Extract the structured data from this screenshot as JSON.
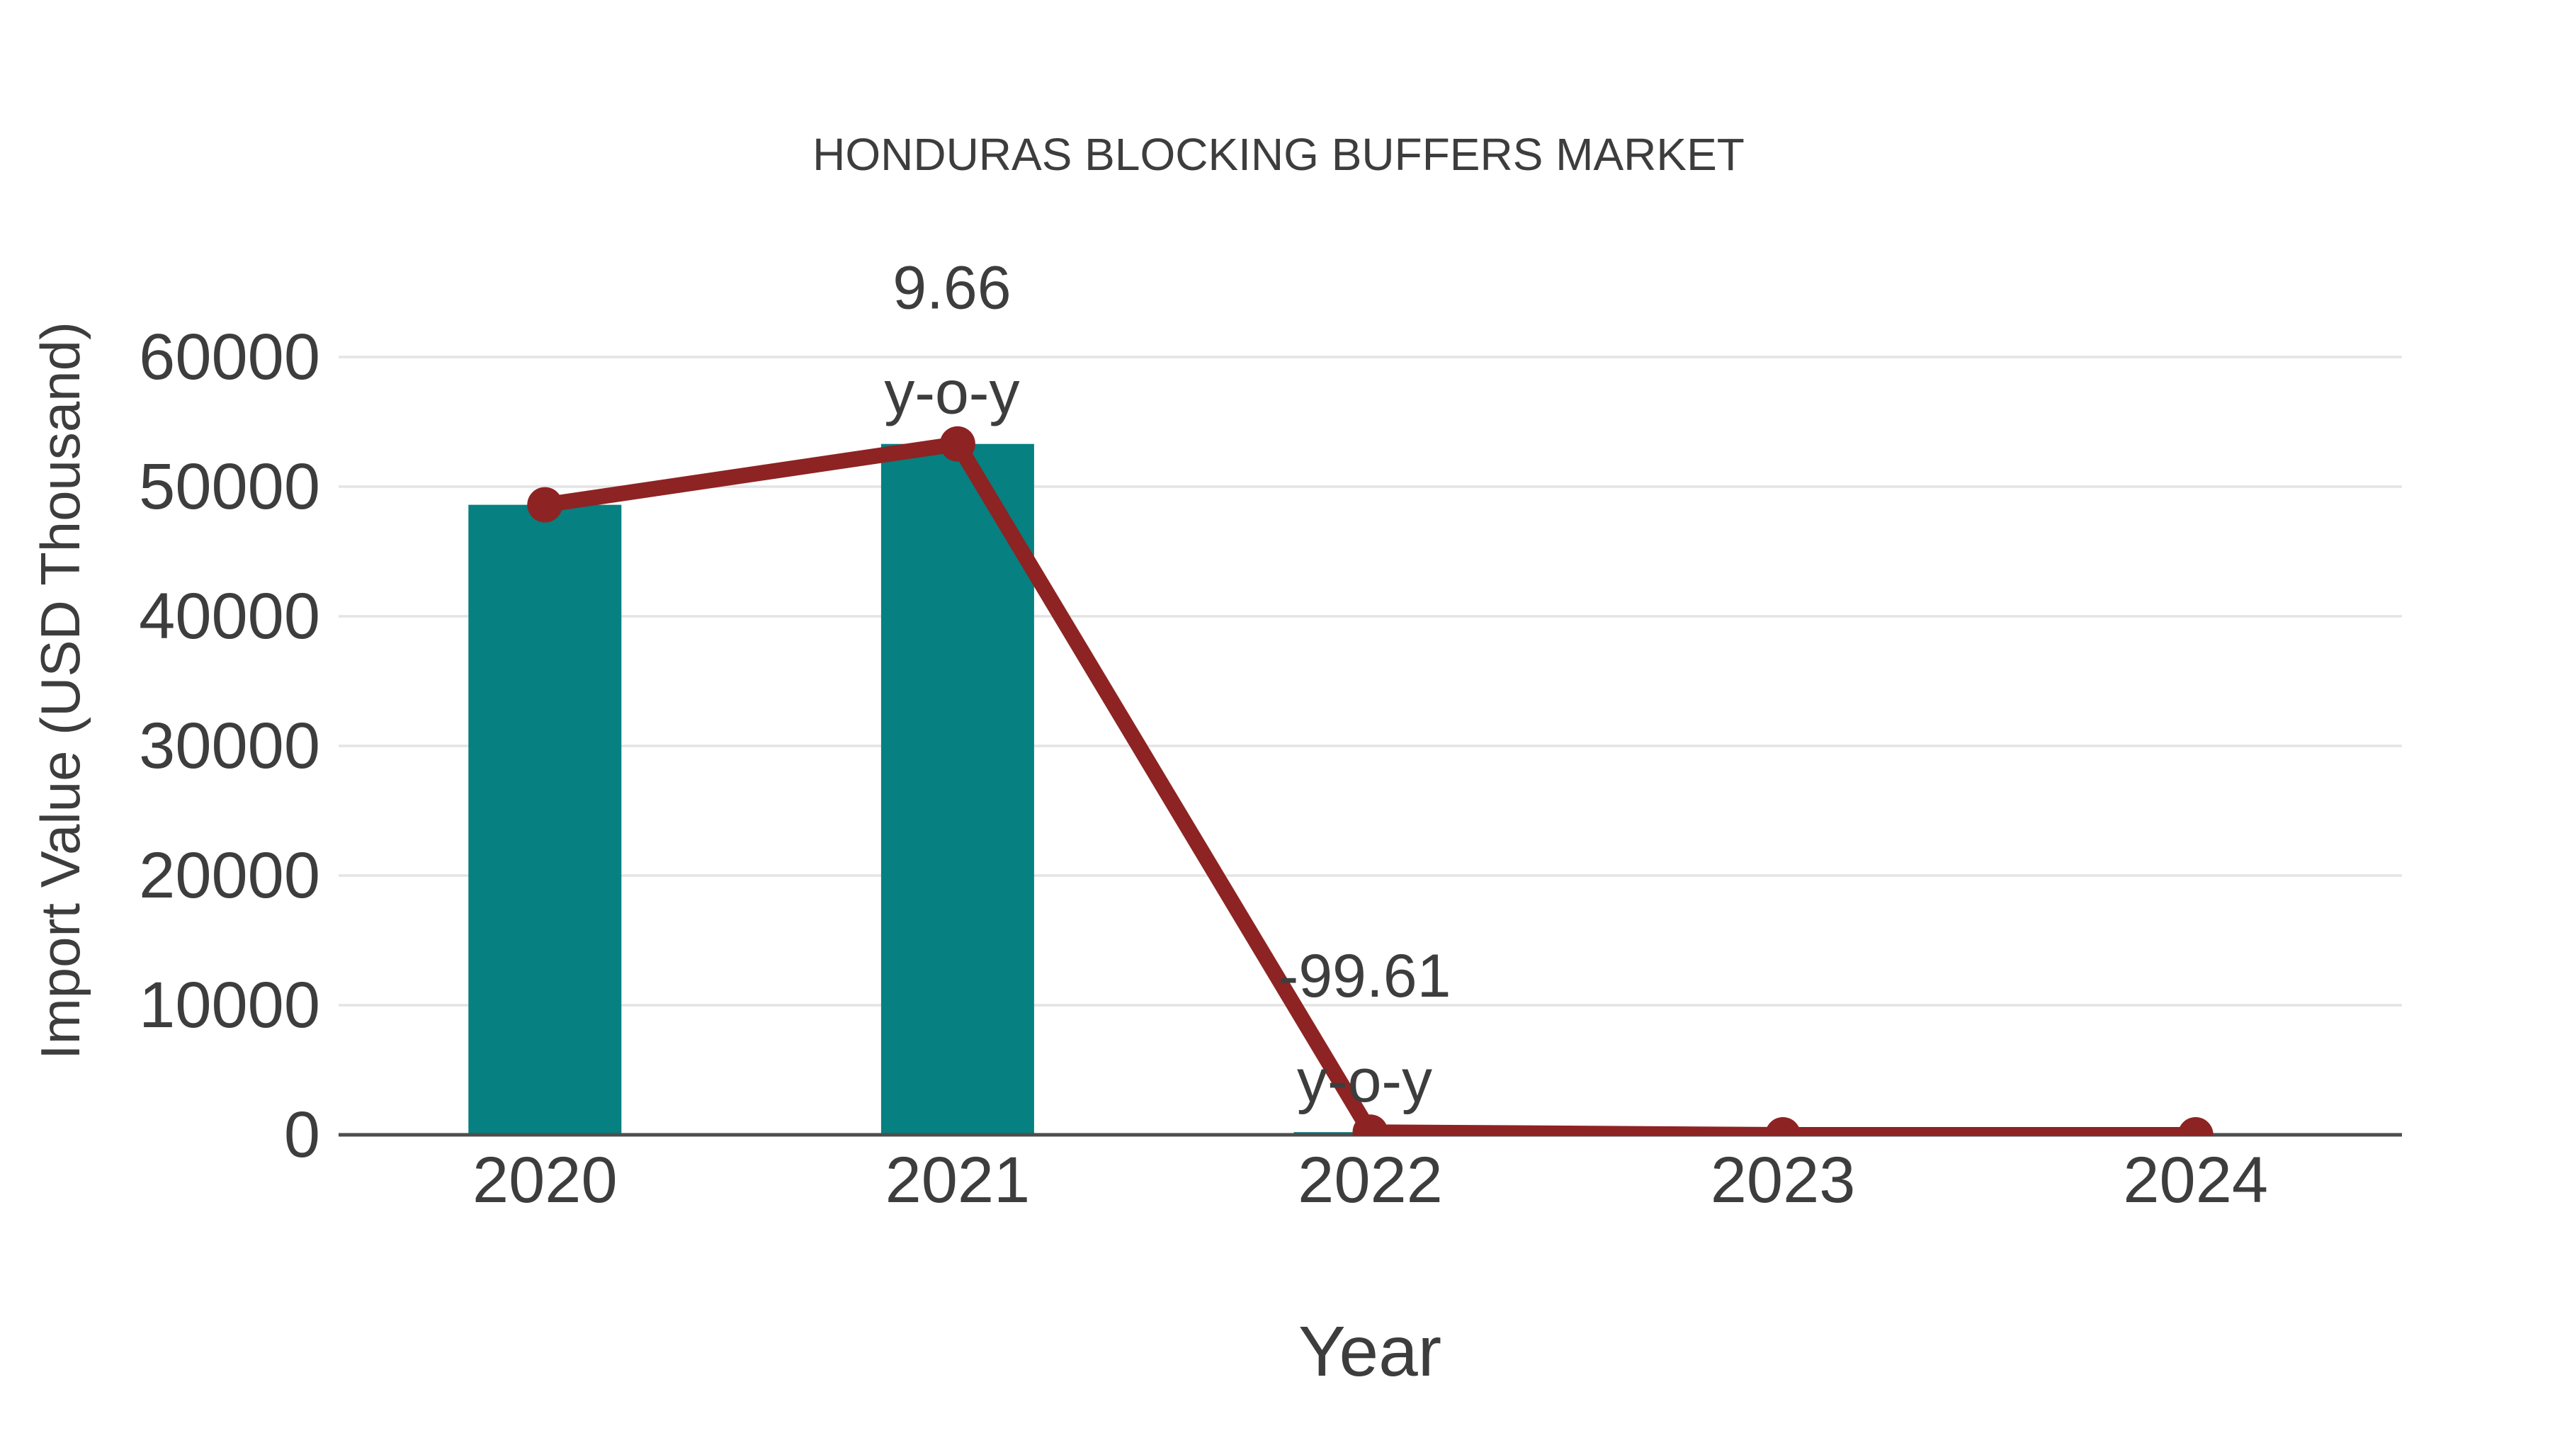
{
  "chart_data": {
    "type": "combo",
    "title": "HONDURAS BLOCKING BUFFERS MARKET",
    "xlabel": "Year",
    "ylabel": "Import Value (USD Thousand)",
    "categories": [
      "2020",
      "2021",
      "2022",
      "2023",
      "2024"
    ],
    "series": [
      {
        "name": "Import Value bars",
        "type": "bar",
        "color": "#068080",
        "values": [
          48600,
          53295,
          208,
          0,
          0
        ]
      },
      {
        "name": "Import Value trend line",
        "type": "line",
        "color": "#8E2323",
        "values": [
          48600,
          53295,
          208,
          0,
          0
        ]
      }
    ],
    "ylim": [
      0,
      65000
    ],
    "yticks": [
      0,
      10000,
      20000,
      30000,
      40000,
      50000,
      60000
    ],
    "grid": true,
    "legend": false,
    "annotations": [
      {
        "category": "2021",
        "lines": [
          "9.66",
          "y-o-y"
        ]
      },
      {
        "category": "2022",
        "lines": [
          "-99.61",
          "y-o-y"
        ]
      }
    ],
    "colors": {
      "text": "#3D3D3D",
      "grid": "#E4E4E4",
      "axis": "#4D4D4D",
      "background": "#FFFFFF"
    }
  }
}
